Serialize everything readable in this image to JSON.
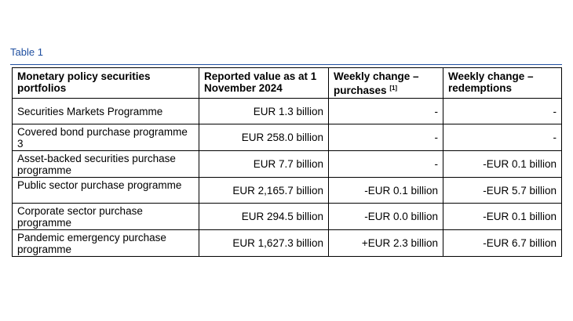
{
  "caption": "Table 1",
  "table": {
    "headers": [
      "Monetary policy securities portfolios",
      "Reported value as at 1 November 2024",
      "Weekly change – purchases",
      "Weekly change – redemptions"
    ],
    "header_footnote": "[1]",
    "rows": [
      [
        "Securities Markets Programme",
        "EUR 1.3 billion",
        "-",
        "-"
      ],
      [
        "Covered bond purchase programme 3",
        "EUR 258.0 billion",
        "-",
        "-"
      ],
      [
        "Asset-backed securities purchase programme",
        "EUR 7.7 billion",
        "-",
        "-EUR 0.1 billion"
      ],
      [
        "Public sector purchase programme",
        "EUR 2,165.7 billion",
        "-EUR 0.1 billion",
        "-EUR 5.7 billion"
      ],
      [
        "Corporate sector purchase programme",
        "EUR 294.5 billion",
        "-EUR 0.0 billion",
        "-EUR 0.1 billion"
      ],
      [
        "Pandemic emergency purchase programme",
        "EUR 1,627.3 billion",
        "+EUR 2.3 billion",
        "-EUR 6.7 billion"
      ]
    ]
  },
  "colors": {
    "caption": "#1f4fa0",
    "border": "#000000"
  }
}
